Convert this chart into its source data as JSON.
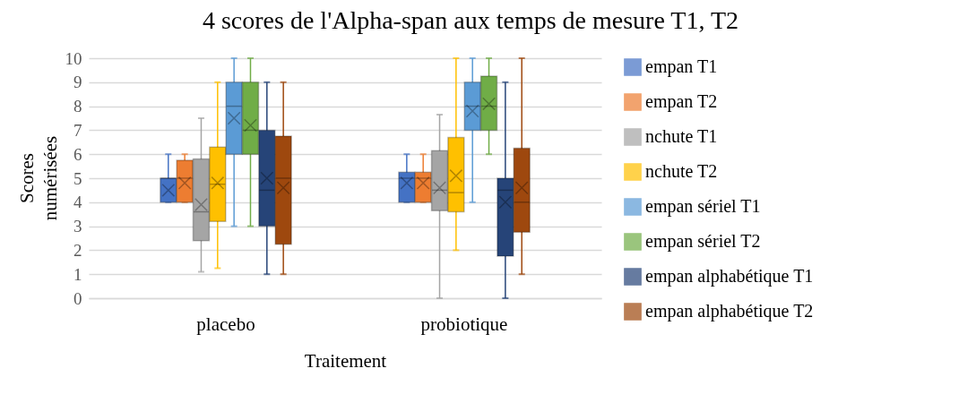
{
  "chart_data": {
    "type": "box",
    "title": "4 scores de l'Alpha-span aux temps de mesure T1, T2",
    "xlabel": "Traitement",
    "ylabel": "Scores numérisées",
    "categories": [
      "placebo",
      "probiotique"
    ],
    "ylim": [
      0,
      10
    ],
    "yticks": [
      0,
      1,
      2,
      3,
      4,
      5,
      6,
      7,
      8,
      9,
      10
    ],
    "grid": "y",
    "legend": "right",
    "series": [
      {
        "name": "empan T1",
        "color": "#4472c4",
        "boxes": [
          {
            "low": 4,
            "q1": 4,
            "median": 5,
            "q3": 5,
            "high": 6,
            "mean": 4.5
          },
          {
            "low": 4,
            "q1": 4,
            "median": 5,
            "q3": 5.25,
            "high": 6,
            "mean": 4.8
          }
        ]
      },
      {
        "name": "empan T2",
        "color": "#ed7d31",
        "boxes": [
          {
            "low": 4,
            "q1": 4,
            "median": 5,
            "q3": 5.75,
            "high": 6,
            "mean": 4.8
          },
          {
            "low": 4,
            "q1": 4,
            "median": 5,
            "q3": 5.25,
            "high": 6,
            "mean": 4.8
          }
        ]
      },
      {
        "name": "nchute T1",
        "color": "#a5a5a5",
        "boxes": [
          {
            "low": 1.1,
            "q1": 2.4,
            "median": 3.6,
            "q3": 5.8,
            "high": 7.5,
            "mean": 3.9
          },
          {
            "low": 0,
            "q1": 3.65,
            "median": 4.5,
            "q3": 6.15,
            "high": 7.65,
            "mean": 4.6
          }
        ]
      },
      {
        "name": "nchute T2",
        "color": "#ffc000",
        "boxes": [
          {
            "low": 1.25,
            "q1": 3.2,
            "median": 4.75,
            "q3": 6.3,
            "high": 9,
            "mean": 4.8
          },
          {
            "low": 2,
            "q1": 3.6,
            "median": 4.4,
            "q3": 6.7,
            "high": 10,
            "mean": 5.1
          }
        ]
      },
      {
        "name": "empan sériel T1",
        "color": "#5b9bd5",
        "boxes": [
          {
            "low": 3,
            "q1": 6,
            "median": 8,
            "q3": 9,
            "high": 10,
            "mean": 7.5
          },
          {
            "low": 4,
            "q1": 7,
            "median": 8,
            "q3": 9,
            "high": 10,
            "mean": 7.8
          }
        ]
      },
      {
        "name": "empan sériel T2",
        "color": "#70ad47",
        "boxes": [
          {
            "low": 3,
            "q1": 6,
            "median": 7,
            "q3": 9,
            "high": 10,
            "mean": 7.2
          },
          {
            "low": 6,
            "q1": 7,
            "median": 8,
            "q3": 9.25,
            "high": 10,
            "mean": 8.1
          }
        ]
      },
      {
        "name": "empan alphabétique T1",
        "color": "#264478",
        "boxes": [
          {
            "low": 1,
            "q1": 3,
            "median": 4.5,
            "q3": 7,
            "high": 9,
            "mean": 5
          },
          {
            "low": 0,
            "q1": 1.75,
            "median": 4.5,
            "q3": 5,
            "high": 9,
            "mean": 4
          }
        ]
      },
      {
        "name": "empan alphabétique T2",
        "color": "#9e480e",
        "boxes": [
          {
            "low": 1,
            "q1": 2.25,
            "median": 5,
            "q3": 6.75,
            "high": 9,
            "mean": 4.6
          },
          {
            "low": 1,
            "q1": 2.75,
            "median": 4,
            "q3": 6.25,
            "high": 10,
            "mean": 4.6
          }
        ]
      }
    ]
  }
}
